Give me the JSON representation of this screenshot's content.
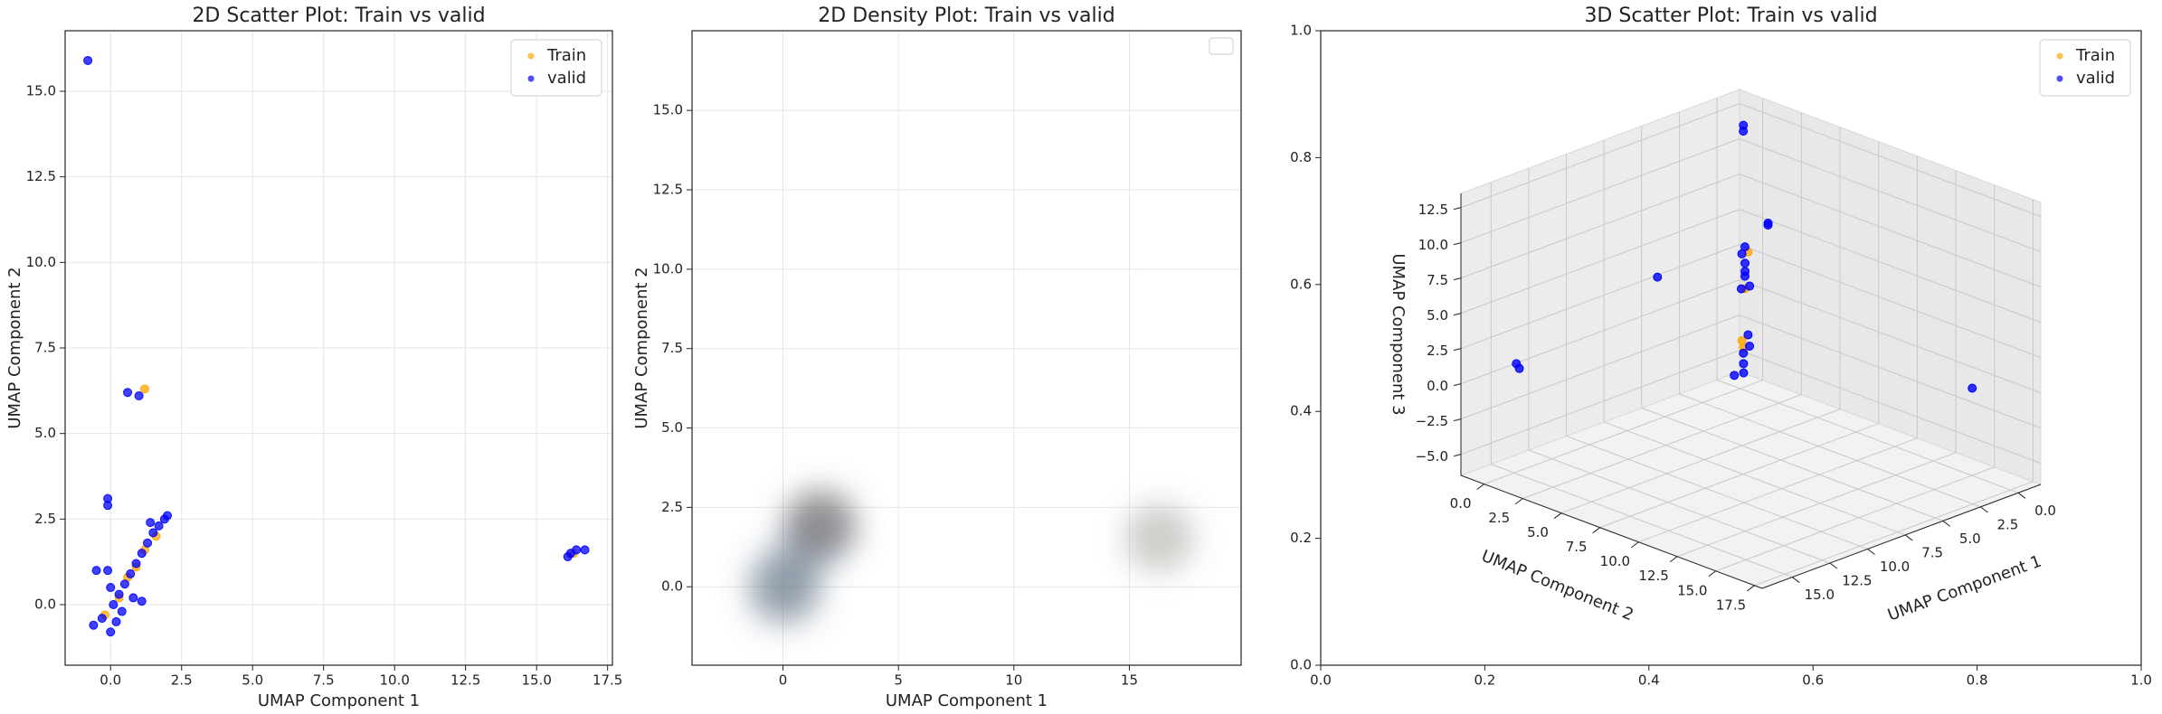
{
  "chart_data": [
    {
      "type": "scatter",
      "title": "2D Scatter Plot: Train vs valid",
      "xlabel": "UMAP Component 1",
      "ylabel": "UMAP Component 2",
      "xlim": [
        -1.6,
        17.67
      ],
      "ylim": [
        -1.77,
        16.77
      ],
      "xticks": [
        {
          "value": 0,
          "label": "0.0"
        },
        2.5,
        {
          "value": 5,
          "label": "5.0"
        },
        7.5,
        {
          "value": 10,
          "label": "10.0"
        },
        12.5,
        {
          "value": 15,
          "label": "15.0"
        },
        17.5
      ],
      "yticks": [
        {
          "value": 0,
          "label": "0.0"
        },
        2.5,
        {
          "value": 5,
          "label": "5.0"
        },
        7.5,
        {
          "value": 10,
          "label": "10.0"
        },
        12.5,
        {
          "value": 15,
          "label": "15.0"
        }
      ],
      "grid": true,
      "legend": "upper right",
      "series": [
        {
          "name": "Train",
          "color": "#ffa500",
          "x": [
            0.9,
            0.3,
            1.2,
            -0.2,
            1.2,
            0.6,
            16.3,
            1.6
          ],
          "y": [
            1.1,
            0.2,
            1.6,
            -0.3,
            6.3,
            0.8,
            1.5,
            2.0
          ]
        },
        {
          "name": "valid",
          "color": "#0000ff",
          "x": [
            -0.6,
            -0.3,
            0,
            0.2,
            0.1,
            0,
            -0.1,
            0.3,
            0.5,
            0.7,
            0.9,
            1.1,
            1.3,
            1.5,
            1.7,
            1.9,
            2.0,
            0.8,
            1.1,
            -0.1,
            -0.1,
            0.6,
            1.0,
            -0.8,
            16.1,
            16.4,
            16.7,
            16.2,
            -0.5,
            0.4,
            1.4
          ],
          "y": [
            -0.6,
            -0.4,
            -0.8,
            -0.5,
            0,
            0.5,
            1.0,
            0.3,
            0.6,
            0.9,
            1.2,
            1.5,
            1.8,
            2.1,
            2.3,
            2.5,
            2.6,
            0.2,
            0.1,
            2.9,
            3.1,
            6.2,
            6.1,
            15.9,
            1.4,
            1.6,
            1.6,
            1.5,
            1.0,
            -0.2,
            2.4
          ]
        }
      ]
    },
    {
      "type": "density",
      "title": "2D Density Plot: Train vs valid",
      "xlabel": "UMAP Component 1",
      "ylabel": "UMAP Component 2",
      "xlim": [
        -3.94,
        19.84
      ],
      "ylim": [
        -2.47,
        17.51
      ],
      "xticks": [
        0,
        5,
        10,
        15
      ],
      "yticks": [
        {
          "value": 0,
          "label": "0.0"
        },
        2.5,
        {
          "value": 5,
          "label": "5.0"
        },
        7.5,
        {
          "value": 10,
          "label": "10.0"
        },
        12.5,
        {
          "value": 15,
          "label": "15.0"
        }
      ],
      "grid": true,
      "series": [
        {
          "color": "#2c5d8a",
          "x": [
            -0.2,
            0,
            0.2,
            0.1,
            -0.1,
            0.3,
            1.4,
            1.6,
            1.8,
            1.5,
            1.7,
            1.9,
            1.3,
            1.6,
            0.8,
            16.2,
            16.4
          ],
          "y": [
            -0.3,
            0,
            -0.2,
            0.3,
            0.2,
            -0.1,
            1.8,
            2.0,
            1.9,
            2.1,
            1.7,
            2.0,
            1.9,
            1.8,
            0.9,
            1.5,
            1.6
          ]
        },
        {
          "color": "#e08030",
          "x": [
            1.5,
            1.7,
            0.1,
            16.3
          ],
          "y": [
            1.9,
            2.0,
            0.0,
            1.5
          ]
        }
      ]
    },
    {
      "type": "scatter3d",
      "title": "3D Scatter Plot: Train vs valid",
      "xlim": [
        0,
        1
      ],
      "ylim": [
        0,
        1
      ],
      "xticks": [
        {
          "value": 0,
          "label": "0.0"
        },
        0.2,
        0.4,
        0.6,
        0.8,
        {
          "value": 1,
          "label": "1.0"
        }
      ],
      "yticks": [
        {
          "value": 0,
          "label": "0.0"
        },
        0.2,
        0.4,
        0.6,
        0.8,
        {
          "value": 1,
          "label": "1.0"
        }
      ],
      "legend": "upper right",
      "axes3d": {
        "xlabel": "UMAP Component 1",
        "ylabel": "UMAP Component 2",
        "zlabel": "UMAP Component 3",
        "xlim": [
          -1.5,
          17
        ],
        "ylim": [
          -1.5,
          18
        ],
        "zlim": [
          -6.5,
          13.5
        ],
        "xticks": [
          {
            "value": 0,
            "label": "0.0"
          },
          2.5,
          {
            "value": 5,
            "label": "5.0"
          },
          7.5,
          {
            "value": 10,
            "label": "10.0"
          },
          12.5,
          {
            "value": 15,
            "label": "15.0"
          }
        ],
        "yticks": [
          {
            "value": 0,
            "label": "0.0"
          },
          2.5,
          {
            "value": 5,
            "label": "5.0"
          },
          7.5,
          {
            "value": 10,
            "label": "10.0"
          },
          12.5,
          {
            "value": 15,
            "label": "15.0"
          },
          17.5
        ],
        "zticks": [
          {
            "value": -5,
            "label": "−5.0"
          },
          {
            "value": -2.5,
            "label": "−2.5"
          },
          {
            "value": 0,
            "label": "0.0"
          },
          2.5,
          {
            "value": 5,
            "label": "5.0"
          },
          7.5,
          {
            "value": 10,
            "label": "10.0"
          },
          12.5
        ]
      },
      "series": [
        {
          "name": "Train",
          "color": "#ffa500",
          "x": [
            0.6,
            0.7,
            0.5,
            0.4
          ],
          "y": [
            0.9,
            0.8,
            1.0,
            0.6
          ],
          "z": [
            1.2,
            -2.5,
            3.8,
            -3.2
          ]
        },
        {
          "name": "valid",
          "color": "#0000ff",
          "x": [
            0.5,
            0.6,
            0.4,
            0.7,
            0.5,
            0.6,
            0.8,
            0.5,
            1.0,
            0.3,
            0.9,
            0.6,
            0.2,
            0.3,
            16.2,
            16.5,
            1.0,
            3.0,
            6.0,
            0.2,
            0.4
          ],
          "y": [
            0.8,
            0.9,
            0.7,
            1.0,
            0.6,
            1.2,
            1.0,
            0.7,
            1.2,
            0.9,
            0.5,
            1.1,
            0.4,
            0.5,
            1.5,
            1.6,
            16.0,
            3.0,
            0.5,
            2.0,
            2.2
          ],
          "z": [
            2.0,
            3.0,
            4.0,
            2.5,
            3.5,
            1.5,
            -4.0,
            -3.5,
            -4.5,
            -3.0,
            -5.0,
            -2.0,
            12.0,
            12.5,
            2.0,
            2.5,
            0.5,
            3.0,
            4.0,
            6.0,
            6.3
          ]
        }
      ]
    }
  ]
}
